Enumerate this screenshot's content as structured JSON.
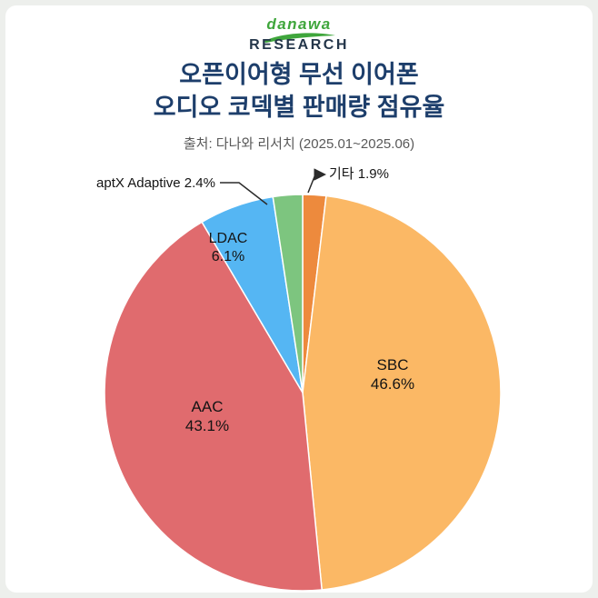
{
  "logo": {
    "brand": "danawa",
    "sub": "RESEARCH"
  },
  "title": {
    "line1": "오픈이어형 무선 이어폰",
    "line2": "오디오 코덱별 판매량 점유율"
  },
  "source": "출처: 다나와 리서치 (2025.01~2025.06)",
  "chart_data": {
    "type": "pie",
    "title": "오픈이어형 무선 이어폰 오디오 코덱별 판매량 점유율",
    "source": "출처: 다나와 리서치 (2025.01~2025.06)",
    "start_angle_deg": 0,
    "direction": "clockwise",
    "legend": false,
    "segments": [
      {
        "label": "기타",
        "value": 1.9,
        "pct_label": "1.9%",
        "color": "#ed8a3d",
        "callout": true
      },
      {
        "label": "SBC",
        "value": 46.6,
        "pct_label": "46.6%",
        "color": "#fbb865",
        "callout": false
      },
      {
        "label": "AAC",
        "value": 43.1,
        "pct_label": "43.1%",
        "color": "#e06b6e",
        "callout": false
      },
      {
        "label": "LDAC",
        "value": 6.1,
        "pct_label": "6.1%",
        "color": "#55b6f3",
        "callout": false
      },
      {
        "label": "aptX Adaptive",
        "value": 2.4,
        "pct_label": "2.4%",
        "color": "#7dc57f",
        "callout": true
      }
    ]
  },
  "colors": {
    "title": "#1d3e6b",
    "brand_green": "#3fa63c",
    "brand_navy": "#24364a",
    "card_bg": "#ffffff",
    "page_bg": "#edefec"
  }
}
